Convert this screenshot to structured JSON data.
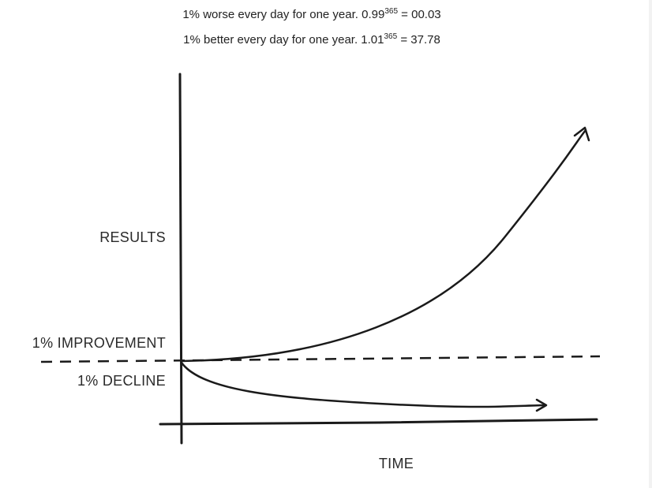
{
  "captions": {
    "worse": {
      "prefix": "1% worse every day for one year. ",
      "base": "0.99",
      "exponent": "365",
      "suffix": " = 00.03"
    },
    "better": {
      "prefix": "1% better every day for one year. ",
      "base": "1.01",
      "exponent": "365",
      "suffix": " = 37.78"
    }
  },
  "chart_data": {
    "type": "line",
    "title": "",
    "xlabel": "TIME",
    "ylabel": "RESULTS",
    "grid": false,
    "legend": "none",
    "baseline": {
      "y": 1.0,
      "style": "dashed"
    },
    "annotations": {
      "above_baseline": "1% IMPROVEMENT",
      "below_baseline": "1% DECLINE"
    },
    "series": [
      {
        "growth_rate": 1.01,
        "start": 1.0,
        "end": 37.78,
        "trend": "exponential growth",
        "style": "curve-with-arrow"
      },
      {
        "growth_rate": 0.99,
        "start": 1.0,
        "end": 0.03,
        "trend": "exponential decay",
        "style": "curve-with-arrow"
      }
    ],
    "colors": {
      "ink": "#1a1a1a"
    }
  }
}
